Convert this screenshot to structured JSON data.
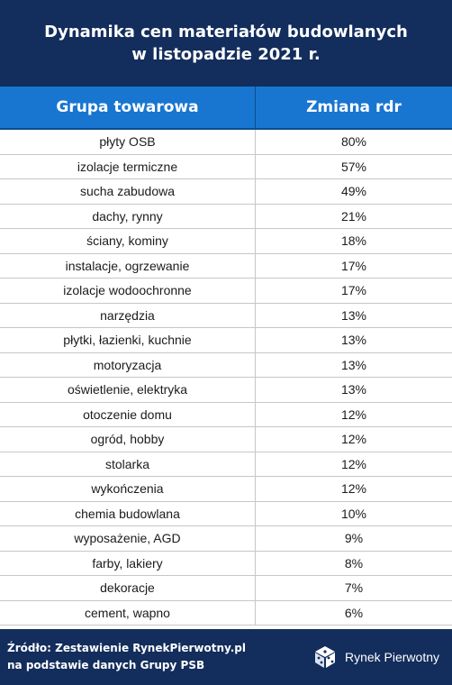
{
  "title": {
    "line1": "Dynamika cen materiałów budowlanych",
    "line2": "w listopadzie 2021 r."
  },
  "table": {
    "headers": [
      "Grupa towarowa",
      "Zmiana rdr"
    ],
    "rows": [
      [
        "płyty OSB",
        "80%"
      ],
      [
        "izolacje termiczne",
        "57%"
      ],
      [
        "sucha zabudowa",
        "49%"
      ],
      [
        "dachy, rynny",
        "21%"
      ],
      [
        "ściany, kominy",
        "18%"
      ],
      [
        "instalacje, ogrzewanie",
        "17%"
      ],
      [
        "izolacje wodoochronne",
        "17%"
      ],
      [
        "narzędzia",
        "13%"
      ],
      [
        "płytki, łazienki, kuchnie",
        "13%"
      ],
      [
        "motoryzacja",
        "13%"
      ],
      [
        "oświetlenie, elektryka",
        "13%"
      ],
      [
        "otoczenie domu",
        "12%"
      ],
      [
        "ogród, hobby",
        "12%"
      ],
      [
        "stolarka",
        "12%"
      ],
      [
        "wykończenia",
        "12%"
      ],
      [
        "chemia budowlana",
        "10%"
      ],
      [
        "wyposażenie, AGD",
        "9%"
      ],
      [
        "farby, lakiery",
        "8%"
      ],
      [
        "dekoracje",
        "7%"
      ],
      [
        "cement, wapno",
        "6%"
      ]
    ]
  },
  "footer": {
    "source_line1": "Źródło: Zestawienie RynekPierwotny.pl",
    "source_line2": "na podstawie danych Grupy PSB",
    "brand": "Rynek Pierwotny",
    "brand_icon": "cube-logo-icon"
  },
  "colors": {
    "navy": "#132d5c",
    "header_blue": "#1876d1"
  }
}
